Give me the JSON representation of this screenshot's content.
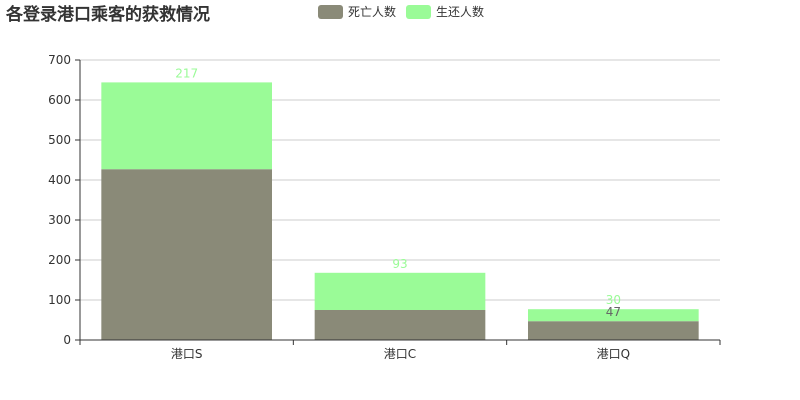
{
  "colors": {
    "dead": "#8a8a78",
    "survived": "#9afb97",
    "grid": "#cccccc",
    "axis": "#333333"
  },
  "chart_data": {
    "type": "bar",
    "stacked": true,
    "title": "各登录港口乘客的获救情况",
    "legend_position": "top-center",
    "grid": true,
    "categories": [
      "港口S",
      "港口C",
      "港口Q"
    ],
    "series": [
      {
        "name": "死亡人数",
        "values": [
          427,
          75,
          47
        ],
        "labels": [
          "",
          "",
          "47"
        ]
      },
      {
        "name": "生还人数",
        "values": [
          217,
          93,
          30
        ],
        "labels": [
          "217",
          "93",
          "30"
        ]
      }
    ],
    "ylim": [
      0,
      700
    ],
    "yticks": [
      0,
      100,
      200,
      300,
      400,
      500,
      600,
      700
    ]
  }
}
